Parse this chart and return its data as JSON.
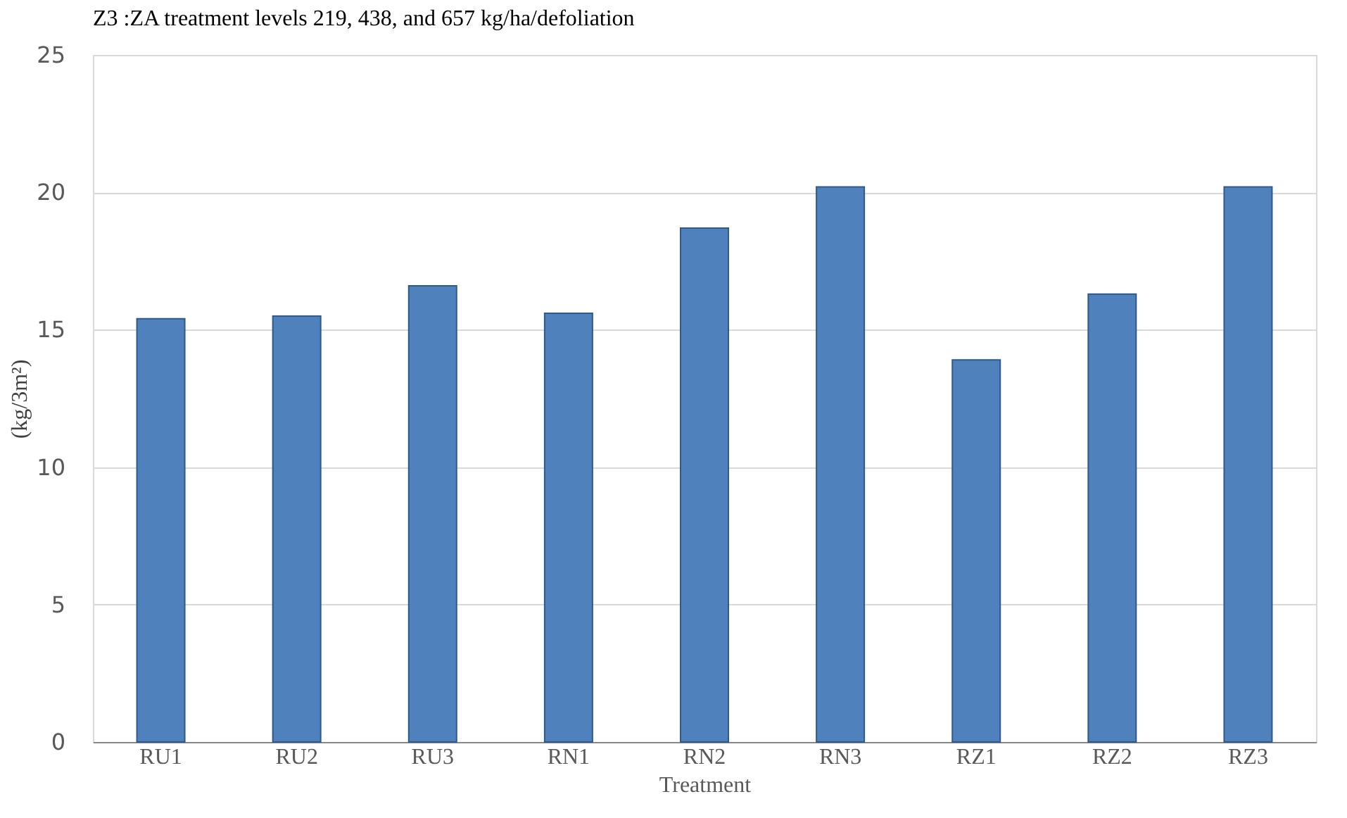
{
  "chart_data": {
    "type": "bar",
    "annotations": [
      "Z3 :ZA treatment levels 219, 438, and 657 kg/ha/defoliation"
    ],
    "xlabel": "Treatment",
    "ylabel": "(kg/3m²)",
    "categories": [
      "RU1",
      "RU2",
      "RU3",
      "RN1",
      "RN2",
      "RN3",
      "RZ1",
      "RZ2",
      "RZ3"
    ],
    "values": [
      15.4,
      15.5,
      16.6,
      15.6,
      18.7,
      20.2,
      13.9,
      16.3,
      20.2
    ],
    "color": "#4f81bd",
    "ylim": [
      0,
      25
    ],
    "yticks": [
      0,
      5,
      10,
      15,
      20,
      25
    ],
    "grid": "y"
  }
}
